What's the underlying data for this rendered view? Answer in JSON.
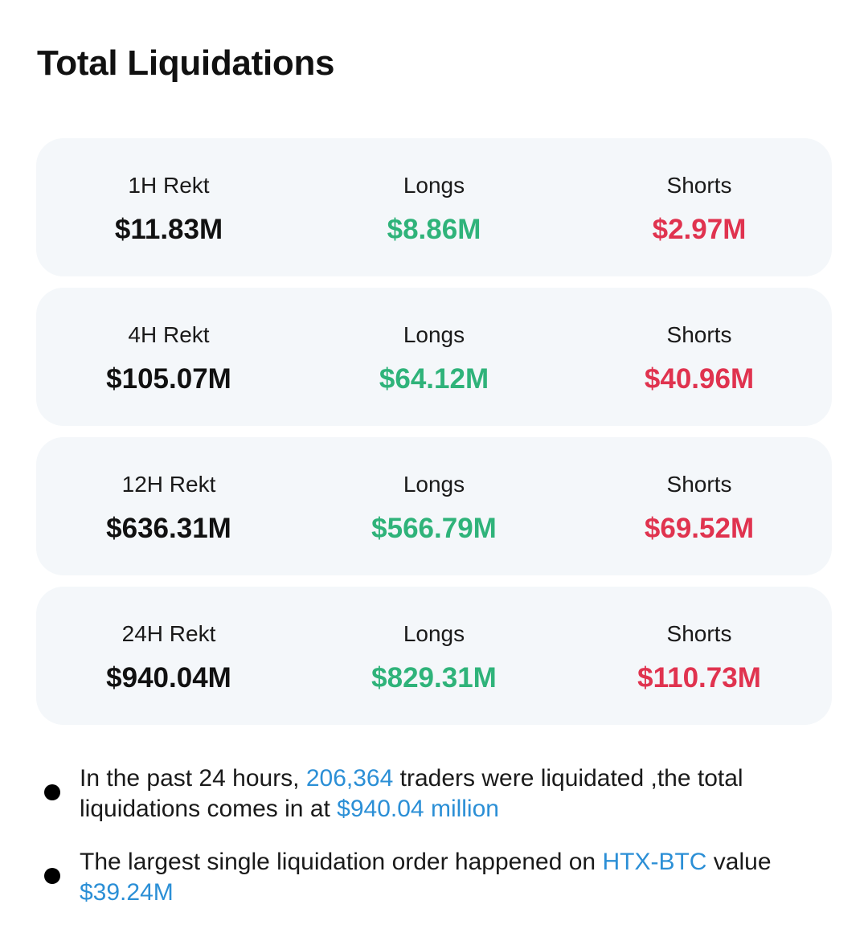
{
  "title": "Total Liquidations",
  "rows": [
    {
      "total_label": "1H Rekt",
      "total_value": "$11.83M",
      "longs_label": "Longs",
      "longs_value": "$8.86M",
      "shorts_label": "Shorts",
      "shorts_value": "$2.97M"
    },
    {
      "total_label": "4H Rekt",
      "total_value": "$105.07M",
      "longs_label": "Longs",
      "longs_value": "$64.12M",
      "shorts_label": "Shorts",
      "shorts_value": "$40.96M"
    },
    {
      "total_label": "12H Rekt",
      "total_value": "$636.31M",
      "longs_label": "Longs",
      "longs_value": "$566.79M",
      "shorts_label": "Shorts",
      "shorts_value": "$69.52M"
    },
    {
      "total_label": "24H Rekt",
      "total_value": "$940.04M",
      "longs_label": "Longs",
      "longs_value": "$829.31M",
      "shorts_label": "Shorts",
      "shorts_value": "$110.73M"
    }
  ],
  "summary": {
    "line1": {
      "pre": "In the past 24 hours, ",
      "traders": "206,364",
      "mid": " traders were liquidated ,the total liquidations comes in at ",
      "amount": "$940.04 million"
    },
    "line2": {
      "pre": "The largest single liquidation order happened on ",
      "exchange": "HTX-BTC",
      "mid": " value ",
      "amount": "$39.24M"
    }
  },
  "colors": {
    "long": "#2fb37a",
    "short": "#e0334f",
    "highlight": "#2b8fd6",
    "card_bg": "#f4f7fa"
  }
}
